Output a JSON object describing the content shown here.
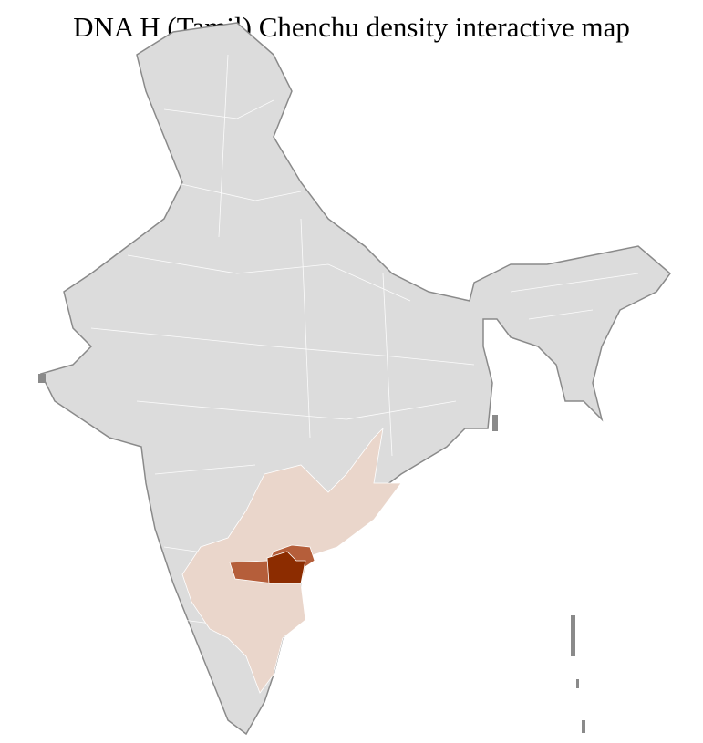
{
  "title": "DNA H (Tamil) Chenchu density interactive map",
  "colors": {
    "no_data": "#dcdcdc",
    "border": "#8a8a8a",
    "district_lines": "#ffffff",
    "low_density": "#ead6cb",
    "medium_density": "#b55e3a",
    "high_density": "#8c2c00"
  },
  "regions": [
    {
      "name": "low-density-districts",
      "level": "low"
    },
    {
      "name": "medium-density-districts",
      "level": "medium"
    },
    {
      "name": "high-density-district",
      "level": "high"
    }
  ]
}
